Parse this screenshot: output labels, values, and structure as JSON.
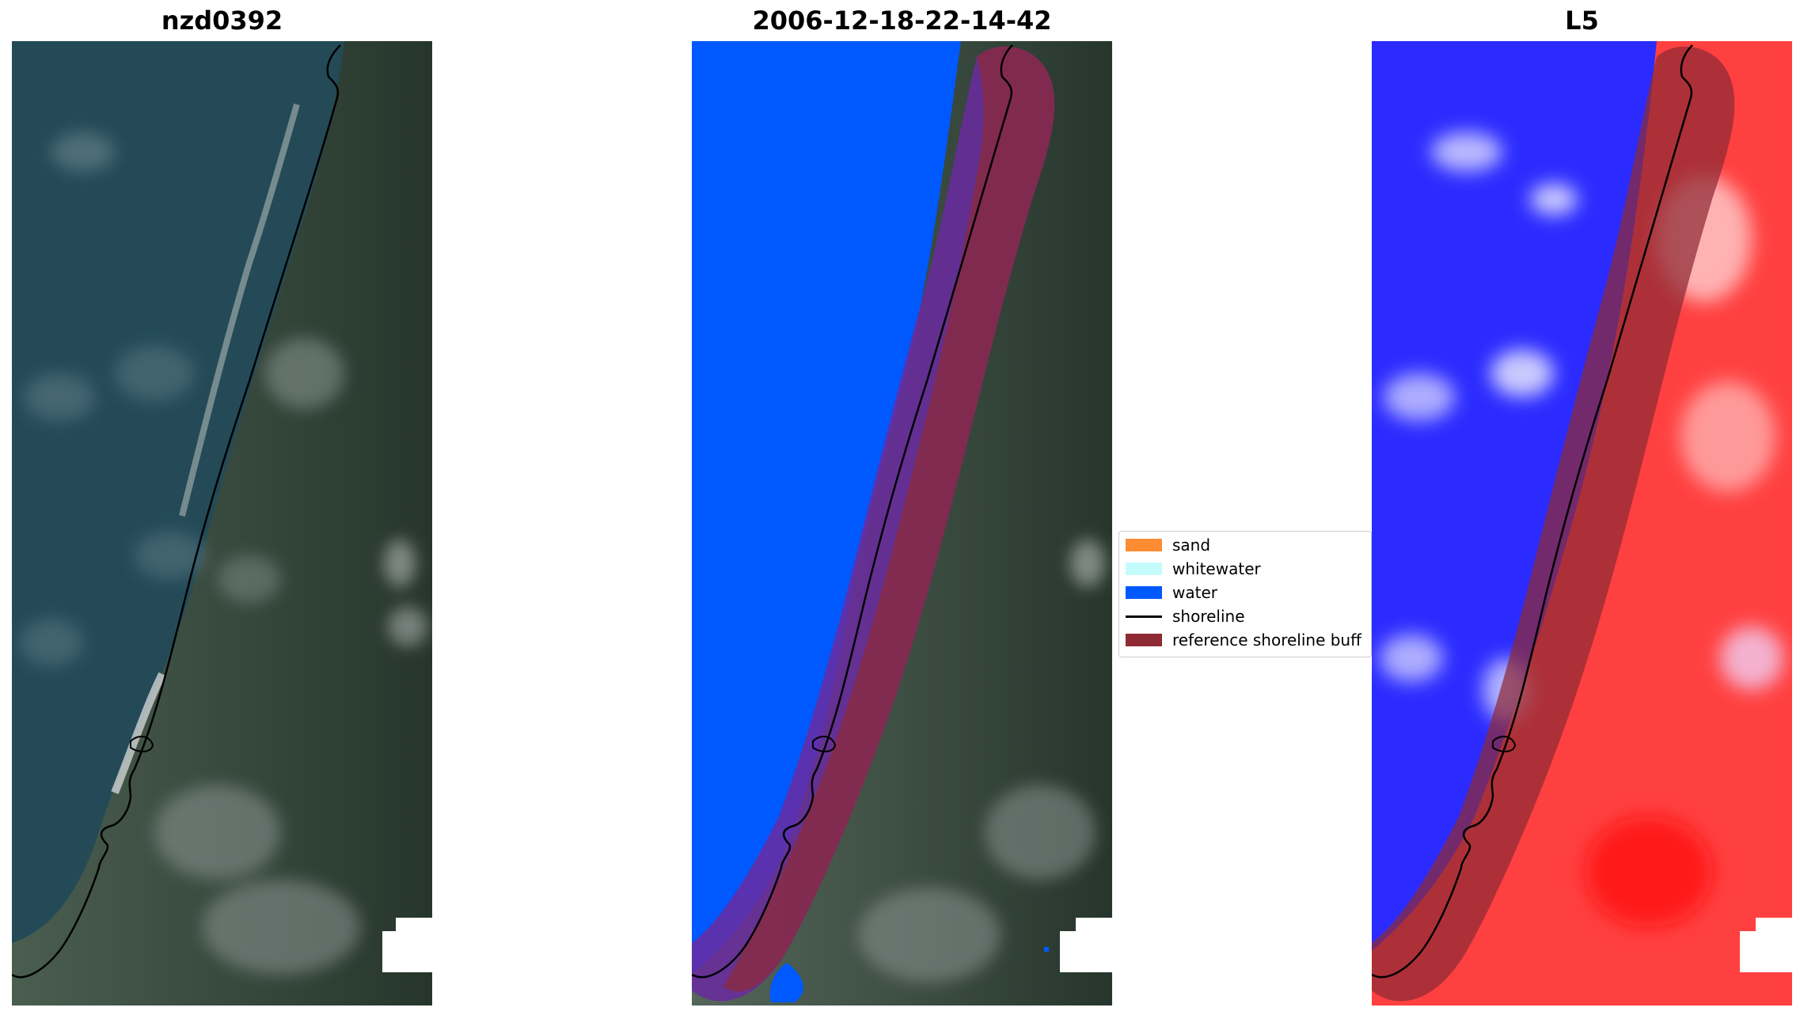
{
  "panels": [
    {
      "title": "nzd0392",
      "kind": "rgb"
    },
    {
      "title": "2006-12-18-22-14-42",
      "kind": "classified"
    },
    {
      "title": "L5",
      "kind": "index"
    }
  ],
  "legend": {
    "items": [
      {
        "label": "sand",
        "color": "#ff8c33",
        "type": "patch"
      },
      {
        "label": "whitewater",
        "color": "#c6fbfb",
        "type": "patch"
      },
      {
        "label": "water",
        "color": "#0059ff",
        "type": "patch"
      },
      {
        "label": "shoreline",
        "color": "#000000",
        "type": "line"
      },
      {
        "label": "reference shoreline buff",
        "color": "#8e2a34",
        "type": "patch"
      }
    ]
  },
  "colors": {
    "sea": "#244a58",
    "land": "#2f4236",
    "cloud": "#d6dadb",
    "water_class": "#0059ff",
    "buffer": "#8e2a34",
    "index_low": "#2b2bff",
    "index_high": "#ff2222"
  }
}
